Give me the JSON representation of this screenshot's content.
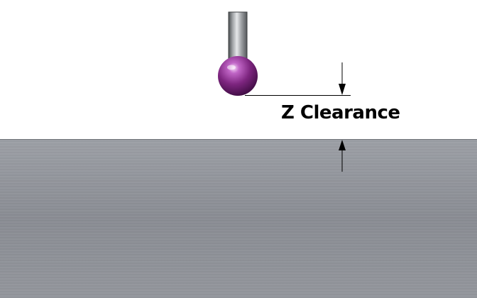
{
  "diagram": {
    "dimension_label": "Z Clearance",
    "colors": {
      "background": "#ffffff",
      "workpiece": "#8e9198",
      "stylus_shaft": "#7a7d80",
      "probe_ball": "#8b2f8f",
      "dimension_lines": "#000000"
    },
    "icons": {
      "probe": "probe-stylus-icon",
      "workpiece": "metal-workpiece-block"
    }
  }
}
